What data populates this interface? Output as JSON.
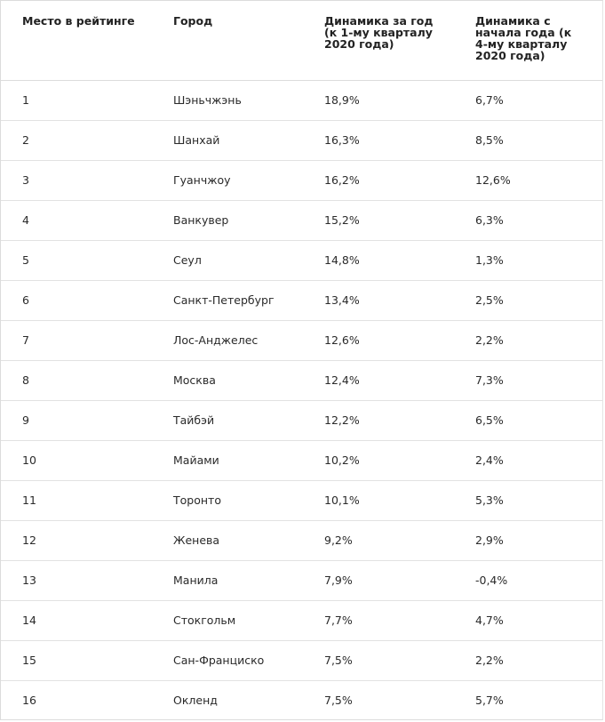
{
  "table": {
    "columns": [
      "Место в рейтинге",
      "Город",
      "Динамика за год (к 1-му кварталу 2020 года)",
      "Динамика с начала года (к 4-му кварталу 2020 года)"
    ],
    "rows": [
      [
        "1",
        "Шэньчжэнь",
        "18,9%",
        "6,7%"
      ],
      [
        "2",
        "Шанхай",
        "16,3%",
        "8,5%"
      ],
      [
        "3",
        "Гуанчжоу",
        "16,2%",
        "12,6%"
      ],
      [
        "4",
        "Ванкувер",
        "15,2%",
        "6,3%"
      ],
      [
        "5",
        "Сеул",
        "14,8%",
        "1,3%"
      ],
      [
        "6",
        "Санкт-Петербург",
        "13,4%",
        "2,5%"
      ],
      [
        "7",
        "Лос-Анджелес",
        "12,6%",
        "2,2%"
      ],
      [
        "8",
        "Москва",
        "12,4%",
        "7,3%"
      ],
      [
        "9",
        "Тайбэй",
        "12,2%",
        "6,5%"
      ],
      [
        "10",
        "Майами",
        "10,2%",
        "2,4%"
      ],
      [
        "11",
        "Торонто",
        "10,1%",
        "5,3%"
      ],
      [
        "12",
        "Женева",
        "9,2%",
        "2,9%"
      ],
      [
        "13",
        "Манила",
        "7,9%",
        "-0,4%"
      ],
      [
        "14",
        "Стокгольм",
        "7,7%",
        "4,7%"
      ],
      [
        "15",
        "Сан-Франциско",
        "7,5%",
        "2,2%"
      ],
      [
        "16",
        "Окленд",
        "7,5%",
        "5,7%"
      ]
    ]
  }
}
